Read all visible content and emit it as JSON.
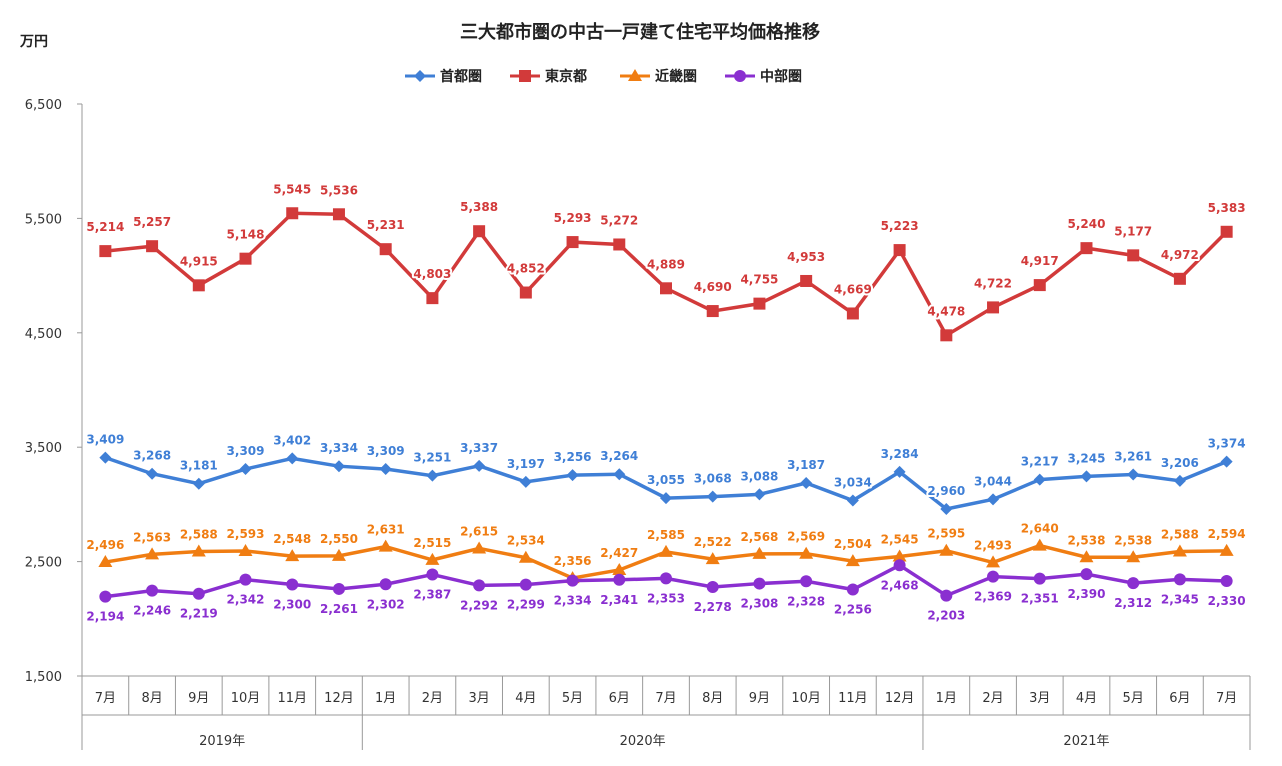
{
  "chart_data": {
    "type": "line",
    "title": "三大都市圏の中古一戸建て住宅平均価格推移",
    "ylabel": "万円",
    "ylim": [
      1500,
      6500
    ],
    "yticks": [
      "1,500",
      "2,500",
      "3,500",
      "4,500",
      "5,500",
      "6,500"
    ],
    "ytick_values": [
      1500,
      2500,
      3500,
      4500,
      5500,
      6500
    ],
    "grid": false,
    "legend": "top-center",
    "categories": [
      "7月",
      "8月",
      "9月",
      "10月",
      "11月",
      "12月",
      "1月",
      "2月",
      "3月",
      "4月",
      "5月",
      "6月",
      "7月",
      "8月",
      "9月",
      "10月",
      "11月",
      "12月",
      "1月",
      "2月",
      "3月",
      "4月",
      "5月",
      "6月",
      "7月"
    ],
    "years": [
      {
        "label": "2019年",
        "months": 6
      },
      {
        "label": "2020年",
        "months": 12
      },
      {
        "label": "2021年",
        "months": 7
      }
    ],
    "series": [
      {
        "name": "首都圏",
        "color": "#3f7fd6",
        "marker": "diamond",
        "values": [
          3409,
          3268,
          3181,
          3309,
          3402,
          3334,
          3309,
          3251,
          3337,
          3197,
          3256,
          3264,
          3055,
          3068,
          3088,
          3187,
          3034,
          3284,
          2960,
          3044,
          3217,
          3245,
          3261,
          3206,
          3374
        ]
      },
      {
        "name": "東京都",
        "color": "#d23a3a",
        "marker": "square",
        "values": [
          5214,
          5257,
          4915,
          5148,
          5545,
          5536,
          5231,
          4803,
          5388,
          4852,
          5293,
          5272,
          4889,
          4690,
          4755,
          4953,
          4669,
          5223,
          4478,
          4722,
          4917,
          5240,
          5177,
          4972,
          5383
        ]
      },
      {
        "name": "近畿圏",
        "color": "#f07d12",
        "marker": "triangle",
        "values": [
          2496,
          2563,
          2588,
          2593,
          2548,
          2550,
          2631,
          2515,
          2615,
          2534,
          2356,
          2427,
          2585,
          2522,
          2568,
          2569,
          2504,
          2545,
          2595,
          2493,
          2640,
          2538,
          2538,
          2588,
          2594
        ]
      },
      {
        "name": "中部圏",
        "color": "#8a2fd0",
        "marker": "circle",
        "values": [
          2194,
          2246,
          2219,
          2342,
          2300,
          2261,
          2302,
          2387,
          2292,
          2299,
          2334,
          2341,
          2353,
          2278,
          2308,
          2328,
          2256,
          2468,
          2203,
          2369,
          2351,
          2390,
          2312,
          2345,
          2330
        ]
      }
    ]
  }
}
